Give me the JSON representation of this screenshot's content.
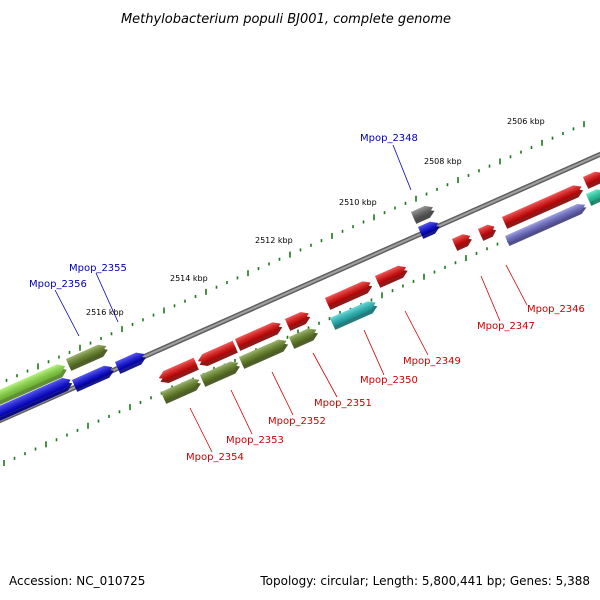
{
  "title": "Methylobacterium populi BJ001, complete genome",
  "footer": {
    "accession": "Accession: NC_010725",
    "stats": "Topology: circular; Length: 5,800,441 bp; Genes: 5,388"
  },
  "colors": {
    "backbone": "#808080",
    "tick": "#1a7a1a",
    "label_top": "#0000b0",
    "label_bottom": "#cc0000"
  },
  "scale_labels": [
    "2506 kbp",
    "2508 kbp",
    "2510 kbp",
    "2512 kbp",
    "2514 kbp",
    "2516 kbp"
  ],
  "gene_labels": {
    "top": [
      "Mpop_2348",
      "Mpop_2355",
      "Mpop_2356"
    ],
    "bottom": [
      "Mpop_2346",
      "Mpop_2347",
      "Mpop_2349",
      "Mpop_2350",
      "Mpop_2351",
      "Mpop_2352",
      "Mpop_2353",
      "Mpop_2354"
    ]
  },
  "gene_colors": {
    "red": "#ee0000",
    "olive": "#6b8e23",
    "blue": "#0000ee",
    "cyan": "#20c8c8",
    "gray": "#666666",
    "lime": "#90ee40",
    "lavender": "#7070d8",
    "teal": "#20e0b0"
  }
}
